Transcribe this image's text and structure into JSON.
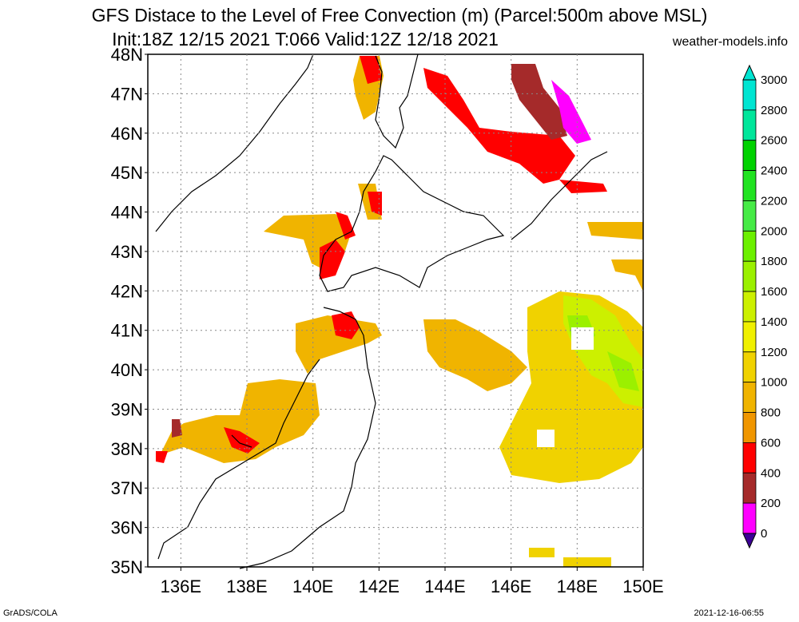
{
  "title_line1": "GFS Distace to the Level of Free Convection (m) (Parcel:500m above MSL)",
  "title_line2": "Init:18Z 12/15 2021 T:066 Valid:12Z 12/18 2021",
  "credit": "weather-models.info",
  "footer_left": "GrADS/COLA",
  "footer_right": "2021-12-16-06:55",
  "map": {
    "lat_labels": [
      "48N",
      "47N",
      "46N",
      "45N",
      "44N",
      "43N",
      "42N",
      "41N",
      "40N",
      "39N",
      "38N",
      "37N",
      "36N",
      "35N"
    ],
    "lon_labels": [
      "136E",
      "138E",
      "140E",
      "142E",
      "144E",
      "146E",
      "148E",
      "150E"
    ],
    "lat_range": [
      35,
      48
    ],
    "lon_range": [
      135,
      150
    ],
    "grid": "dotted"
  },
  "colorbar": {
    "labels": [
      "3000",
      "2800",
      "2600",
      "2400",
      "2200",
      "2000",
      "1800",
      "1600",
      "1400",
      "1200",
      "1000",
      "800",
      "600",
      "400",
      "200",
      "0"
    ],
    "colors": [
      "#00e5d2",
      "#00e69b",
      "#00d200",
      "#21e321",
      "#46eb46",
      "#6cf000",
      "#9bf000",
      "#ccf000",
      "#f0f000",
      "#f0d200",
      "#f0b400",
      "#f09600",
      "#ff0000",
      "#a52a2a",
      "#ff00ff",
      "#3c0096"
    ]
  }
}
